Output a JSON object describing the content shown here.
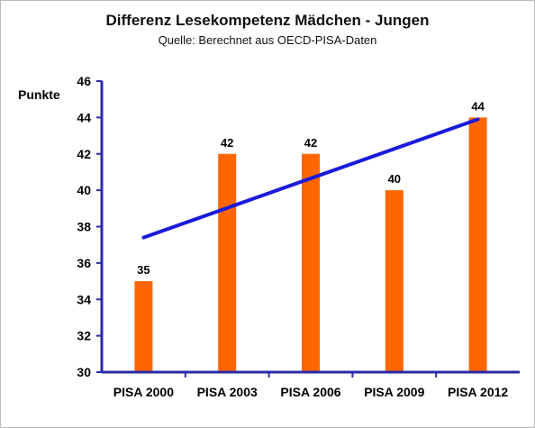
{
  "chart_data": {
    "type": "bar",
    "title": "Differenz Lesekompetenz Mädchen - Jungen",
    "subtitle": "Quelle: Berechnet aus OECD-PISA-Daten",
    "ylabel": "Punkte",
    "xlabel": "",
    "categories": [
      "PISA 2000",
      "PISA 2003",
      "PISA 2006",
      "PISA 2009",
      "PISA 2012"
    ],
    "values": [
      35,
      42,
      42,
      40,
      44
    ],
    "data_labels": [
      "35",
      "42",
      "42",
      "40",
      "44"
    ],
    "ylim": [
      30,
      46
    ],
    "yticks": [
      "30",
      "32",
      "34",
      "36",
      "38",
      "40",
      "42",
      "44",
      "46"
    ],
    "trendline": {
      "start": 37.4,
      "end": 43.9
    },
    "grid": false,
    "legend": "none",
    "colors": {
      "bar": "#ff6600",
      "trendline": "#1a1adc",
      "axis": "#2a2aa8",
      "frame": "#bbbbbb"
    }
  }
}
